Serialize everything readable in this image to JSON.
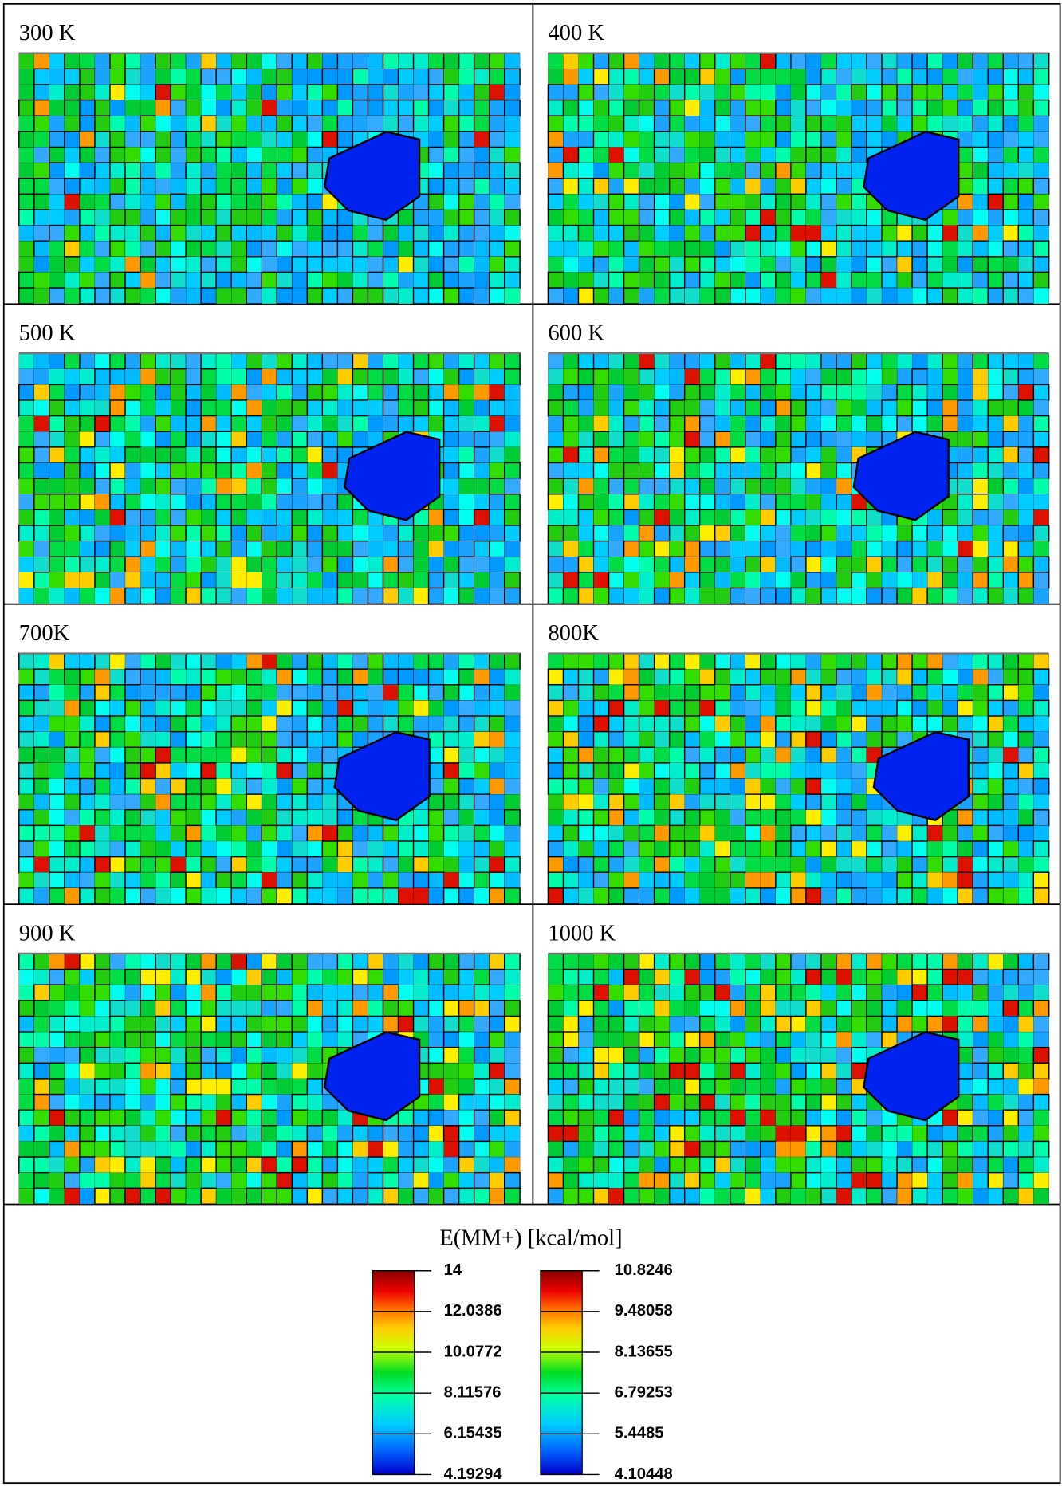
{
  "panels": [
    {
      "label": "300 K"
    },
    {
      "label": "400 K"
    },
    {
      "label": "500 K"
    },
    {
      "label": "600 K"
    },
    {
      "label": "700K"
    },
    {
      "label": "800K"
    },
    {
      "label": "900 K"
    },
    {
      "label": "1000 K"
    }
  ],
  "legend": {
    "title": "E(MM+) [kcal/mol]",
    "scales": [
      {
        "ticks": [
          "14",
          "12.0386",
          "10.0772",
          "8.11576",
          "6.15435",
          "4.19294"
        ]
      },
      {
        "ticks": [
          "10.8246",
          "9.48058",
          "8.13655",
          "6.79253",
          "5.4485",
          "4.10448"
        ]
      }
    ]
  }
}
